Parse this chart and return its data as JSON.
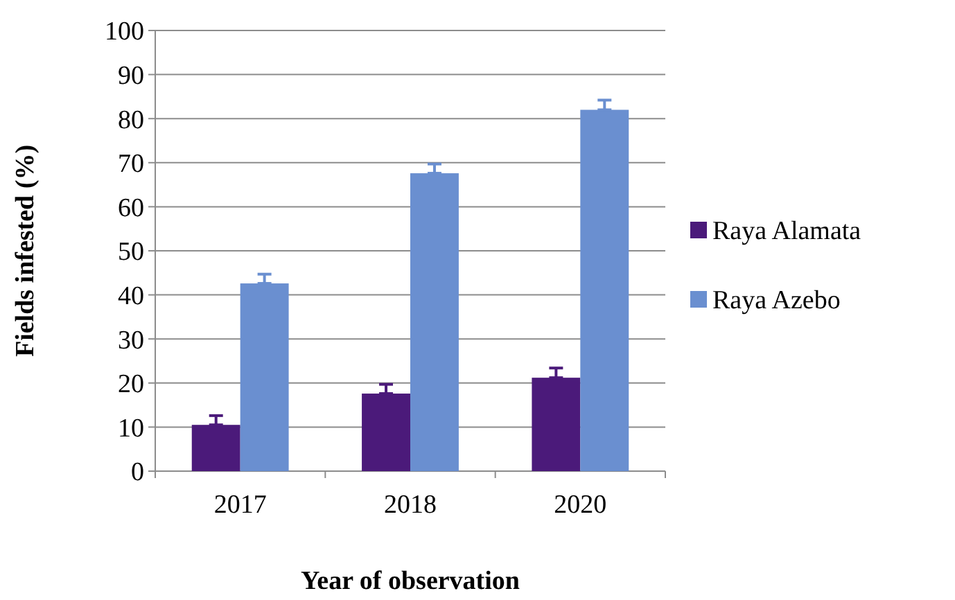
{
  "chart_data": {
    "type": "bar",
    "xlabel": "Year of observation",
    "ylabel": "Fields infested (%)",
    "categories": [
      "2017",
      "2018",
      "2020"
    ],
    "series": [
      {
        "name": "Raya Alamata",
        "color": "#4b1a7a",
        "values": [
          10.5,
          17.6,
          21.2
        ],
        "errors": [
          [
            10.5,
            12.6
          ],
          [
            17.6,
            19.7
          ],
          [
            21.2,
            23.4
          ]
        ]
      },
      {
        "name": "Raya Azebo",
        "color": "#6a8fd0",
        "values": [
          42.6,
          67.6,
          82.0
        ],
        "errors": [
          [
            42.6,
            44.7
          ],
          [
            67.6,
            69.7
          ],
          [
            82.0,
            84.2
          ]
        ]
      }
    ],
    "ylim": [
      0,
      100
    ],
    "yticks": [
      0,
      10,
      20,
      30,
      40,
      50,
      60,
      70,
      80,
      90,
      100
    ],
    "grid": "y",
    "legend": "right"
  }
}
